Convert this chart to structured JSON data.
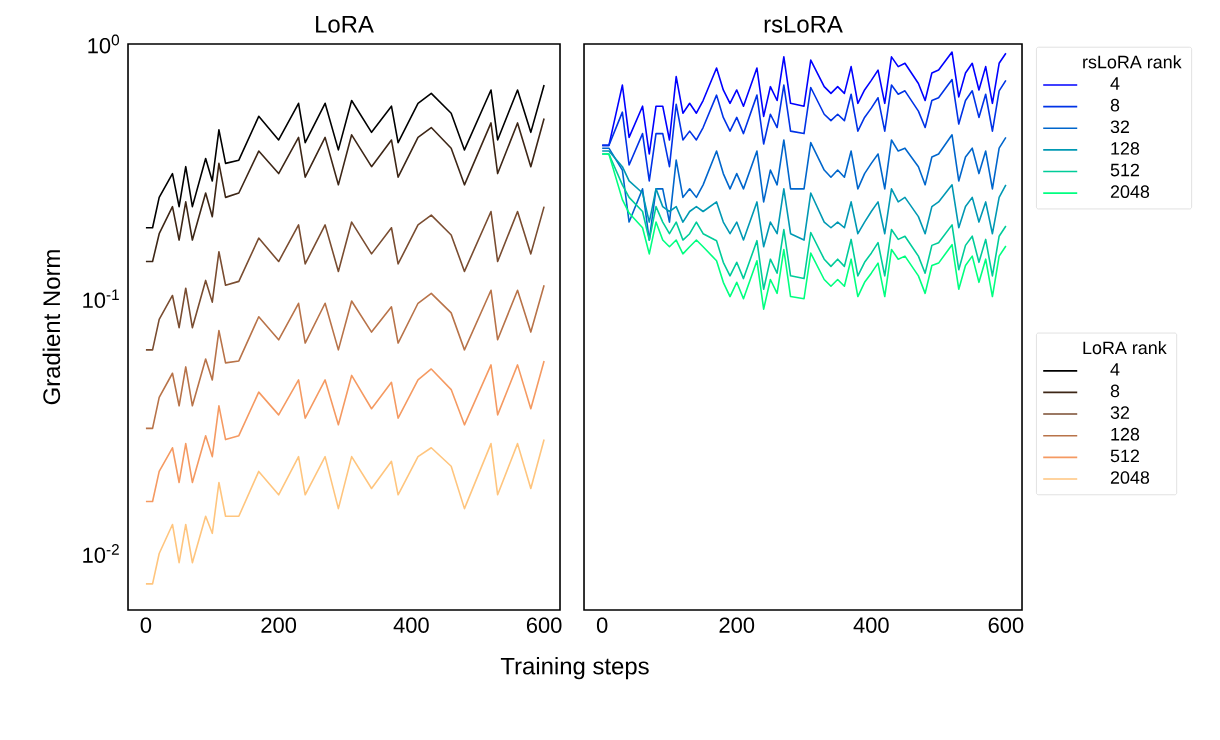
{
  "chart_data": [
    {
      "type": "line",
      "title": "LoRA",
      "xlabel": "Training steps",
      "ylabel": "Gradient Norm",
      "legend_title": "LoRA rank",
      "legend": "right",
      "log": "y",
      "xlim": [
        -27,
        624
      ],
      "xticks": [
        0,
        200,
        400,
        600
      ],
      "ylim": [
        0.006,
        1
      ],
      "yticks": [
        {
          "value": 0.01,
          "label": "10$^{-2}$"
        },
        {
          "value": 0.1,
          "label": "10$^{-1}$"
        },
        {
          "value": 1,
          "label": "10$^{0}$"
        }
      ],
      "x": [
        0,
        10,
        20,
        40,
        50,
        60,
        70,
        90,
        100,
        110,
        120,
        140,
        170,
        200,
        230,
        240,
        270,
        290,
        310,
        340,
        370,
        380,
        410,
        430,
        460,
        480,
        520,
        530,
        560,
        580,
        600
      ],
      "series": [
        {
          "name": "4",
          "color": "#000000",
          "values": [
            0.19,
            0.19,
            0.25,
            0.31,
            0.23,
            0.33,
            0.23,
            0.355,
            0.29,
            0.46,
            0.34,
            0.35,
            0.52,
            0.42,
            0.585,
            0.41,
            0.585,
            0.384,
            0.6,
            0.45,
            0.57,
            0.41,
            0.585,
            0.64,
            0.535,
            0.384,
            0.66,
            0.42,
            0.66,
            0.45,
            0.69
          ]
        },
        {
          "name": "8",
          "color": "#3d2616",
          "values": [
            0.14,
            0.14,
            0.18,
            0.23,
            0.17,
            0.24,
            0.17,
            0.26,
            0.21,
            0.34,
            0.25,
            0.26,
            0.38,
            0.31,
            0.43,
            0.3,
            0.43,
            0.28,
            0.44,
            0.33,
            0.42,
            0.3,
            0.43,
            0.47,
            0.39,
            0.28,
            0.49,
            0.31,
            0.49,
            0.33,
            0.51
          ]
        },
        {
          "name": "32",
          "color": "#7a4d31",
          "values": [
            0.063,
            0.063,
            0.083,
            0.103,
            0.077,
            0.11,
            0.077,
            0.118,
            0.097,
            0.153,
            0.113,
            0.117,
            0.173,
            0.14,
            0.195,
            0.137,
            0.195,
            0.128,
            0.2,
            0.15,
            0.19,
            0.137,
            0.195,
            0.213,
            0.178,
            0.128,
            0.22,
            0.14,
            0.22,
            0.15,
            0.23
          ]
        },
        {
          "name": "128",
          "color": "#b87349",
          "values": [
            0.031,
            0.031,
            0.041,
            0.051,
            0.038,
            0.054,
            0.038,
            0.058,
            0.048,
            0.075,
            0.056,
            0.057,
            0.085,
            0.069,
            0.096,
            0.067,
            0.096,
            0.063,
            0.098,
            0.074,
            0.093,
            0.067,
            0.096,
            0.105,
            0.088,
            0.063,
            0.108,
            0.069,
            0.108,
            0.074,
            0.113
          ]
        },
        {
          "name": "512",
          "color": "#f59a62",
          "values": [
            0.016,
            0.016,
            0.021,
            0.026,
            0.019,
            0.027,
            0.019,
            0.029,
            0.024,
            0.038,
            0.028,
            0.029,
            0.043,
            0.035,
            0.048,
            0.034,
            0.048,
            0.032,
            0.05,
            0.037,
            0.047,
            0.034,
            0.048,
            0.053,
            0.044,
            0.032,
            0.055,
            0.035,
            0.055,
            0.037,
            0.057
          ]
        },
        {
          "name": "2048",
          "color": "#ffc57e",
          "values": [
            0.0076,
            0.0076,
            0.01,
            0.013,
            0.0092,
            0.013,
            0.0092,
            0.014,
            0.012,
            0.019,
            0.014,
            0.014,
            0.021,
            0.017,
            0.024,
            0.017,
            0.024,
            0.015,
            0.024,
            0.018,
            0.023,
            0.017,
            0.024,
            0.026,
            0.022,
            0.015,
            0.027,
            0.017,
            0.027,
            0.018,
            0.028
          ]
        }
      ]
    },
    {
      "type": "line",
      "title": "rsLoRA",
      "legend_title": "rsLoRA rank",
      "legend": "top right",
      "log": "y",
      "tick_labels": "x",
      "xlim": [
        -27,
        624
      ],
      "xticks": [
        0,
        200,
        400,
        600
      ],
      "ylim": [
        0.006,
        1
      ],
      "yticks": [
        {
          "value": 0.01,
          "label": null
        },
        {
          "value": 0.1,
          "label": null
        },
        {
          "value": 1,
          "label": null
        }
      ],
      "x": [
        0,
        10,
        30,
        40,
        60,
        70,
        80,
        90,
        100,
        110,
        120,
        130,
        140,
        150,
        170,
        180,
        190,
        200,
        210,
        230,
        240,
        250,
        260,
        270,
        280,
        300,
        310,
        330,
        340,
        350,
        360,
        370,
        380,
        390,
        400,
        410,
        420,
        430,
        440,
        450,
        470,
        480,
        490,
        500,
        520,
        530,
        540,
        550,
        560,
        570,
        580,
        590,
        600
      ],
      "series": [
        {
          "name": "4",
          "color": "#0000ff",
          "values": [
            0.4,
            0.4,
            0.69,
            0.43,
            0.57,
            0.37,
            0.57,
            0.57,
            0.42,
            0.745,
            0.535,
            0.585,
            0.535,
            0.6,
            0.805,
            0.66,
            0.585,
            0.66,
            0.57,
            0.805,
            0.52,
            0.68,
            0.6,
            0.89,
            0.585,
            0.57,
            0.865,
            0.68,
            0.64,
            0.68,
            0.64,
            0.815,
            0.585,
            0.66,
            0.72,
            0.79,
            0.585,
            0.89,
            0.815,
            0.84,
            0.7,
            0.6,
            0.77,
            0.79,
            0.93,
            0.62,
            0.77,
            0.84,
            0.66,
            0.815,
            0.585,
            0.84,
            0.92
          ]
        },
        {
          "name": "8",
          "color": "#0033e6",
          "values": [
            0.4,
            0.4,
            0.54,
            0.335,
            0.445,
            0.29,
            0.445,
            0.445,
            0.33,
            0.58,
            0.42,
            0.455,
            0.42,
            0.47,
            0.63,
            0.515,
            0.455,
            0.515,
            0.445,
            0.63,
            0.405,
            0.53,
            0.47,
            0.69,
            0.455,
            0.445,
            0.675,
            0.53,
            0.5,
            0.53,
            0.5,
            0.635,
            0.455,
            0.515,
            0.56,
            0.615,
            0.455,
            0.69,
            0.635,
            0.655,
            0.545,
            0.47,
            0.6,
            0.615,
            0.725,
            0.485,
            0.6,
            0.655,
            0.515,
            0.635,
            0.455,
            0.655,
            0.72
          ]
        },
        {
          "name": "32",
          "color": "#0066cc",
          "values": [
            0.39,
            0.39,
            0.32,
            0.2,
            0.27,
            0.17,
            0.27,
            0.27,
            0.2,
            0.35,
            0.25,
            0.27,
            0.25,
            0.28,
            0.38,
            0.31,
            0.27,
            0.31,
            0.27,
            0.38,
            0.24,
            0.32,
            0.28,
            0.42,
            0.27,
            0.27,
            0.41,
            0.32,
            0.3,
            0.32,
            0.3,
            0.38,
            0.27,
            0.31,
            0.34,
            0.37,
            0.27,
            0.42,
            0.38,
            0.39,
            0.33,
            0.28,
            0.36,
            0.37,
            0.44,
            0.29,
            0.36,
            0.39,
            0.31,
            0.38,
            0.27,
            0.39,
            0.43
          ]
        },
        {
          "name": "128",
          "color": "#0099b3",
          "values": [
            0.38,
            0.38,
            0.33,
            0.29,
            0.26,
            0.2,
            0.27,
            0.23,
            0.22,
            0.23,
            0.2,
            0.22,
            0.23,
            0.22,
            0.24,
            0.2,
            0.18,
            0.2,
            0.17,
            0.24,
            0.16,
            0.2,
            0.18,
            0.27,
            0.18,
            0.17,
            0.26,
            0.2,
            0.19,
            0.2,
            0.19,
            0.24,
            0.18,
            0.2,
            0.22,
            0.24,
            0.18,
            0.27,
            0.24,
            0.25,
            0.21,
            0.18,
            0.23,
            0.24,
            0.28,
            0.19,
            0.23,
            0.25,
            0.2,
            0.24,
            0.18,
            0.25,
            0.28
          ]
        },
        {
          "name": "512",
          "color": "#00cc99",
          "values": [
            0.37,
            0.37,
            0.28,
            0.25,
            0.22,
            0.17,
            0.23,
            0.2,
            0.18,
            0.2,
            0.17,
            0.18,
            0.2,
            0.18,
            0.169,
            0.139,
            0.123,
            0.139,
            0.12,
            0.169,
            0.109,
            0.143,
            0.126,
            0.187,
            0.123,
            0.12,
            0.182,
            0.143,
            0.134,
            0.143,
            0.134,
            0.171,
            0.123,
            0.139,
            0.151,
            0.166,
            0.123,
            0.187,
            0.171,
            0.176,
            0.147,
            0.126,
            0.162,
            0.166,
            0.195,
            0.13,
            0.162,
            0.176,
            0.139,
            0.171,
            0.123,
            0.176,
            0.193
          ]
        },
        {
          "name": "2048",
          "color": "#00ff80",
          "values": [
            0.37,
            0.37,
            0.245,
            0.217,
            0.19,
            0.15,
            0.2,
            0.17,
            0.16,
            0.17,
            0.15,
            0.16,
            0.17,
            0.16,
            0.141,
            0.116,
            0.102,
            0.116,
            0.1,
            0.141,
            0.091,
            0.119,
            0.105,
            0.156,
            0.102,
            0.1,
            0.151,
            0.119,
            0.112,
            0.119,
            0.112,
            0.143,
            0.102,
            0.116,
            0.126,
            0.138,
            0.102,
            0.156,
            0.143,
            0.147,
            0.123,
            0.105,
            0.135,
            0.138,
            0.163,
            0.109,
            0.135,
            0.147,
            0.116,
            0.143,
            0.102,
            0.147,
            0.161
          ]
        }
      ]
    }
  ]
}
